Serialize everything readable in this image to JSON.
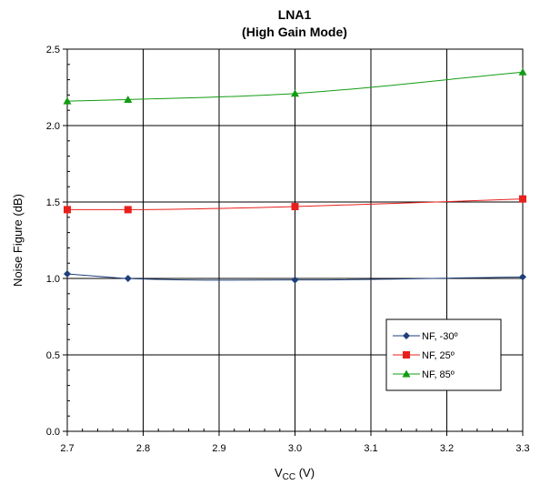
{
  "chart_data": {
    "type": "line",
    "title": "LNA1",
    "subtitle": "(High Gain Mode)",
    "xlabel_main": "V",
    "xlabel_sub": "CC",
    "xlabel_unit": " (V)",
    "ylabel": "Noise Figure (dB)",
    "xlim": [
      2.7,
      3.3
    ],
    "ylim": [
      0.0,
      2.5
    ],
    "x_ticks": [
      "2.7",
      "2.8",
      "2.9",
      "3.0",
      "3.1",
      "3.2",
      "3.3"
    ],
    "y_ticks": [
      "0.0",
      "0.5",
      "1.0",
      "1.5",
      "2.0",
      "2.5"
    ],
    "x_tick_values": [
      2.7,
      2.8,
      2.9,
      3.0,
      3.1,
      3.2,
      3.3
    ],
    "y_tick_values": [
      0.0,
      0.5,
      1.0,
      1.5,
      2.0,
      2.5
    ],
    "grid": true,
    "legend_position": "lower-right",
    "x": [
      2.7,
      2.78,
      3.0,
      3.3
    ],
    "series": [
      {
        "name": "NF, -30º",
        "values": [
          1.03,
          1.0,
          0.99,
          1.01
        ],
        "color": "#1f3f7a",
        "marker": "diamond"
      },
      {
        "name": "NF, 25º",
        "values": [
          1.45,
          1.45,
          1.47,
          1.52
        ],
        "color": "#e8201c",
        "marker": "square"
      },
      {
        "name": "NF, 85º",
        "values": [
          2.16,
          2.17,
          2.21,
          2.35
        ],
        "color": "#129c12",
        "marker": "triangle"
      }
    ]
  }
}
